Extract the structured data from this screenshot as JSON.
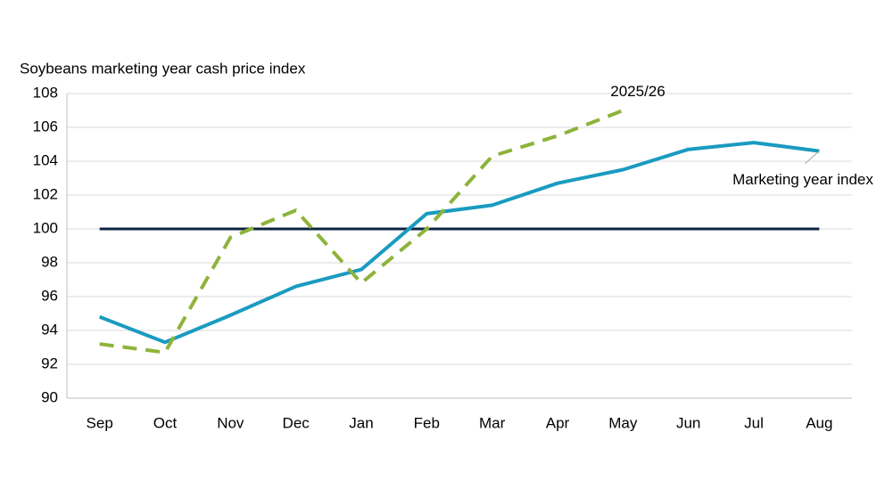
{
  "chart_data": {
    "type": "line",
    "title": "Soybeans marketing year cash price index",
    "categories": [
      "Sep",
      "Oct",
      "Nov",
      "Dec",
      "Jan",
      "Feb",
      "Mar",
      "Apr",
      "May",
      "Jun",
      "Jul",
      "Aug"
    ],
    "series": [
      {
        "name": "Marketing year index",
        "color": "#1a9bc0",
        "dashed": false,
        "values": [
          94.8,
          93.3,
          94.9,
          96.6,
          97.6,
          100.9,
          101.4,
          102.7,
          103.5,
          104.7,
          105.1,
          104.6
        ]
      },
      {
        "name": "2025/26",
        "color": "#8db33a",
        "dashed": true,
        "values": [
          93.2,
          92.7,
          99.5,
          101.1,
          96.8,
          100.0,
          104.3,
          105.5,
          107.0,
          null,
          null,
          null
        ]
      }
    ],
    "reference_line": {
      "value": 100,
      "color": "#0d2440"
    },
    "ylim": [
      90,
      108
    ],
    "yticks": [
      90,
      92,
      94,
      96,
      98,
      100,
      102,
      104,
      106,
      108
    ],
    "grid": true
  }
}
